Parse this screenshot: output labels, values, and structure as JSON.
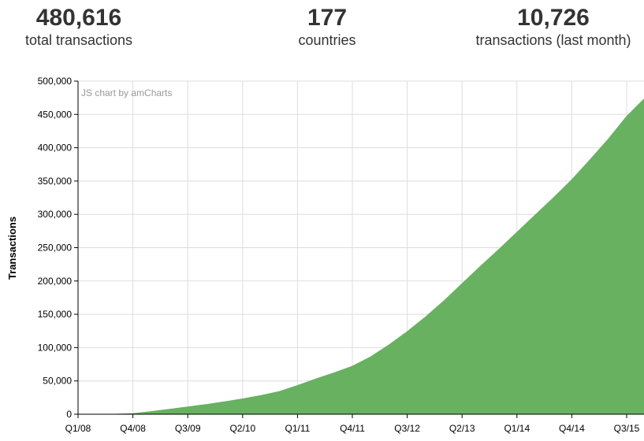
{
  "stats": [
    {
      "value": "480,616",
      "label": "total transactions"
    },
    {
      "value": "177",
      "label": "countries"
    },
    {
      "value": "10,726",
      "label": "transactions (last month)"
    }
  ],
  "chart_credit": "JS chart by amCharts",
  "chart_data": {
    "type": "area",
    "ylabel": "Transactions",
    "xlabel": "",
    "title": "",
    "ylim": [
      0,
      500000
    ],
    "y_ticks": [
      0,
      50000,
      100000,
      150000,
      200000,
      250000,
      300000,
      350000,
      400000,
      450000,
      500000
    ],
    "y_tick_labels": [
      "0",
      "50,000",
      "100,000",
      "150,000",
      "200,000",
      "250,000",
      "300,000",
      "350,000",
      "400,000",
      "450,000",
      "500,000"
    ],
    "x_tick_labels": [
      "Q1/08",
      "Q4/08",
      "Q3/09",
      "Q2/10",
      "Q1/11",
      "Q4/11",
      "Q3/12",
      "Q2/13",
      "Q1/14",
      "Q4/14",
      "Q3/15"
    ],
    "grid": true,
    "color": "#67b160",
    "x": [
      "Q1/08",
      "Q2/08",
      "Q3/08",
      "Q4/08",
      "Q1/09",
      "Q2/09",
      "Q3/09",
      "Q4/09",
      "Q1/10",
      "Q2/10",
      "Q3/10",
      "Q4/10",
      "Q1/11",
      "Q2/11",
      "Q3/11",
      "Q4/11",
      "Q1/12",
      "Q2/12",
      "Q3/12",
      "Q4/12",
      "Q1/13",
      "Q2/13",
      "Q3/13",
      "Q4/13",
      "Q1/14",
      "Q2/14",
      "Q3/14",
      "Q4/14",
      "Q1/15",
      "Q2/15",
      "Q3/15",
      "Q4/15"
    ],
    "values": [
      0,
      0,
      0,
      1000,
      4000,
      7500,
      11000,
      14500,
      18500,
      23000,
      28000,
      34000,
      43000,
      53000,
      62000,
      72000,
      86000,
      104000,
      124000,
      146000,
      170000,
      196000,
      222000,
      247000,
      273000,
      299000,
      325000,
      352000,
      382000,
      413000,
      447000,
      473000
    ]
  }
}
